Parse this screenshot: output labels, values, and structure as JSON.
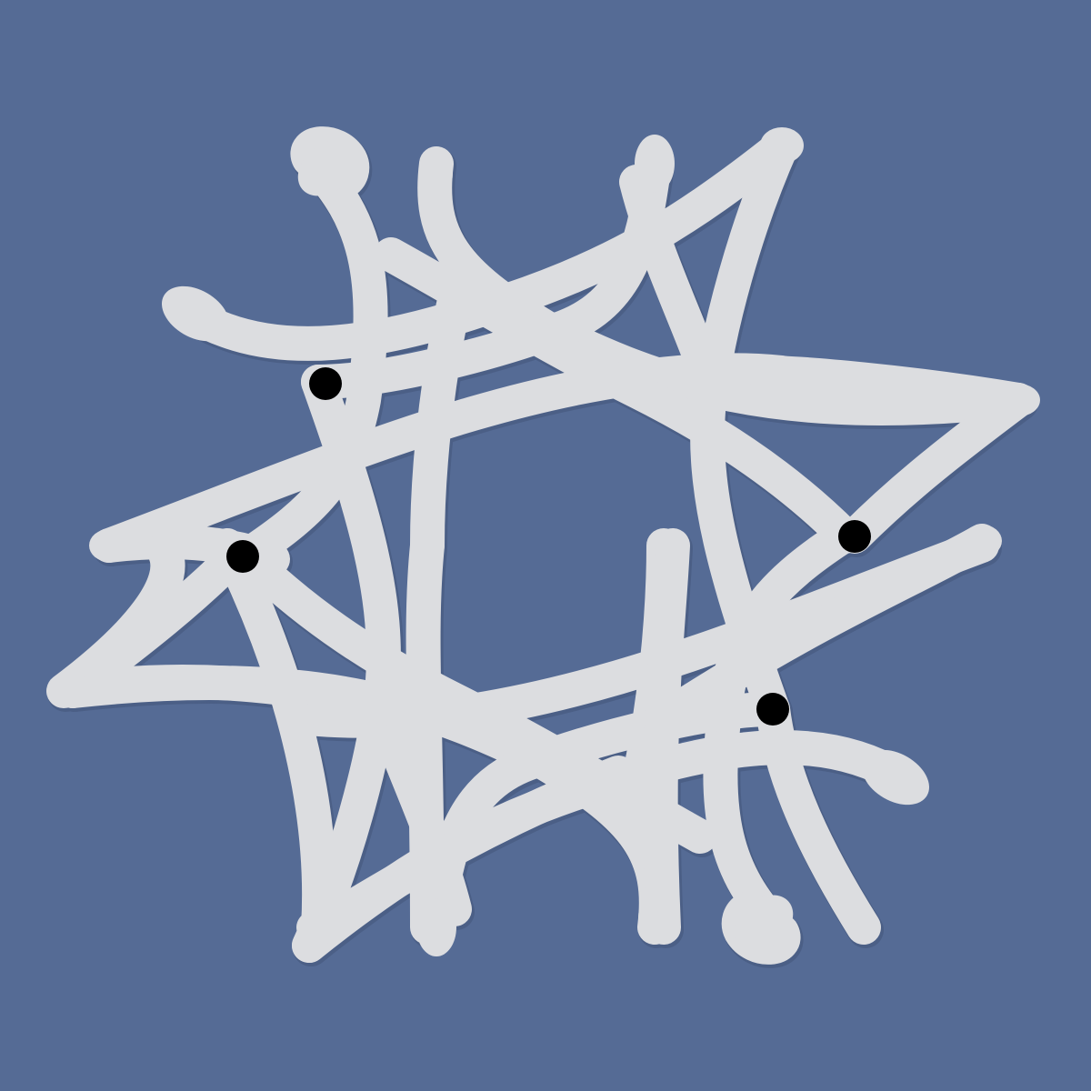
{
  "colors": {
    "background": "#556b95",
    "strand": "#dcdde0",
    "strand_shade": "#c9cace",
    "dot": "#000000"
  },
  "figure": {
    "kind": "interlaced-knot-pattern",
    "strand_count": 1,
    "marker_dots": 4
  }
}
